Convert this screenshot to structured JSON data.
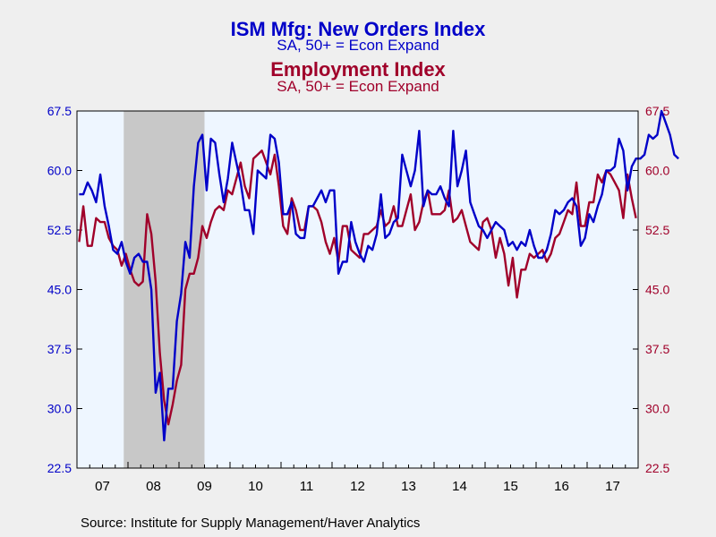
{
  "chart_data": {
    "type": "line",
    "title": "ISM Mfg: New Orders Index",
    "title_subtitle": "SA, 50+ = Econ Expand",
    "title2": "Employment Index",
    "title2_subtitle": "SA, 50+ = Econ Expand",
    "source": "Source:  Institute for Supply Management/Haver Analytics",
    "x_tick_labels": [
      "07",
      "08",
      "09",
      "10",
      "11",
      "12",
      "13",
      "14",
      "15",
      "16",
      "17"
    ],
    "y_left_ticks": [
      "67.5",
      "60.0",
      "52.5",
      "45.0",
      "37.5",
      "30.0",
      "22.5"
    ],
    "y_right_ticks": [
      "67.5",
      "60.0",
      "52.5",
      "45.0",
      "37.5",
      "30.0",
      "22.5"
    ],
    "ylim": [
      22.5,
      67.5
    ],
    "x_range": [
      "2007-01",
      "2017-12"
    ],
    "recession_shading": [
      "2007-12",
      "2009-06"
    ],
    "colors": {
      "new_orders": "#0000c8",
      "employment": "#a0002a",
      "plot_bg": "#eef6ff",
      "recession": "#c8c8c8",
      "left_axis_text": "#0000c8",
      "right_axis_text": "#a0002a"
    },
    "series": [
      {
        "name": "ISM Mfg: New Orders Index",
        "axis": "left",
        "start": "2007-01",
        "values": [
          57.0,
          57.0,
          58.5,
          57.5,
          56.0,
          59.5,
          55.5,
          53.0,
          50.0,
          49.5,
          51.0,
          48.5,
          47.0,
          49.0,
          49.5,
          48.5,
          48.5,
          45.0,
          32.0,
          34.5,
          26.0,
          32.5,
          32.5,
          41.0,
          44.5,
          51.0,
          49.0,
          58.0,
          63.5,
          64.5,
          57.5,
          64.0,
          63.5,
          59.5,
          56.0,
          59.0,
          63.5,
          61.0,
          58.5,
          55.0,
          55.0,
          52.0,
          60.0,
          59.5,
          59.0,
          64.5,
          64.0,
          61.0,
          54.5,
          54.5,
          56.0,
          52.0,
          51.5,
          51.5,
          55.5,
          55.5,
          56.5,
          57.5,
          56.0,
          57.5,
          57.5,
          47.0,
          48.5,
          48.5,
          53.5,
          51.0,
          49.5,
          48.5,
          50.5,
          50.0,
          52.0,
          57.0,
          51.5,
          52.0,
          53.5,
          54.0,
          62.0,
          60.0,
          58.0,
          60.0,
          65.0,
          55.5,
          57.5,
          57.0,
          57.0,
          58.0,
          56.5,
          55.5,
          65.0,
          58.0,
          60.0,
          62.5,
          56.0,
          54.5,
          53.0,
          52.5,
          51.5,
          52.5,
          53.5,
          53.0,
          52.5,
          50.5,
          51.0,
          50.0,
          51.0,
          50.5,
          52.5,
          50.5,
          49.0,
          49.0,
          50.0,
          52.0,
          55.0,
          54.5,
          55.0,
          56.0,
          56.5,
          55.5,
          50.5,
          51.5,
          54.5,
          53.5,
          55.5,
          57.0,
          60.0,
          60.0,
          60.5,
          64.0,
          62.5,
          57.5,
          60.5,
          61.5,
          61.5,
          62.0,
          64.5,
          64.0,
          64.5,
          67.5,
          66.0,
          64.5,
          62.0,
          61.5
        ]
      },
      {
        "name": "Employment Index",
        "axis": "right",
        "start": "2007-01",
        "values": [
          51.0,
          55.5,
          50.5,
          50.5,
          54.0,
          53.5,
          53.5,
          51.5,
          50.5,
          50.0,
          48.0,
          49.5,
          47.5,
          46.0,
          45.5,
          46.0,
          54.5,
          52.0,
          46.0,
          37.0,
          31.0,
          28.0,
          30.5,
          33.5,
          35.5,
          45.0,
          47.0,
          47.0,
          49.0,
          53.0,
          51.5,
          53.5,
          55.0,
          55.5,
          55.0,
          57.5,
          57.0,
          59.0,
          61.0,
          58.0,
          56.5,
          61.5,
          62.0,
          62.5,
          61.0,
          59.5,
          62.0,
          58.0,
          53.0,
          52.0,
          56.5,
          55.0,
          52.5,
          52.5,
          55.5,
          55.5,
          55.0,
          53.5,
          51.0,
          49.5,
          51.5,
          48.5,
          53.0,
          53.0,
          50.0,
          49.5,
          49.0,
          52.0,
          52.0,
          52.5,
          53.0,
          55.0,
          53.0,
          53.5,
          55.5,
          53.0,
          53.0,
          55.0,
          57.0,
          52.5,
          53.5,
          56.0,
          57.5,
          54.5,
          54.5,
          54.5,
          55.0,
          57.5,
          53.5,
          54.0,
          55.0,
          53.0,
          51.0,
          50.5,
          50.0,
          53.5,
          54.0,
          52.5,
          49.0,
          51.5,
          49.5,
          45.5,
          49.0,
          44.0,
          47.5,
          47.5,
          49.5,
          49.0,
          49.5,
          50.0,
          48.5,
          49.5,
          51.5,
          52.0,
          53.5,
          55.0,
          54.5,
          58.5,
          53.0,
          53.0,
          56.0,
          56.0,
          59.5,
          58.5,
          60.0,
          59.5,
          58.5,
          57.5,
          54.0,
          59.5,
          56.5,
          54.0
        ]
      }
    ]
  }
}
